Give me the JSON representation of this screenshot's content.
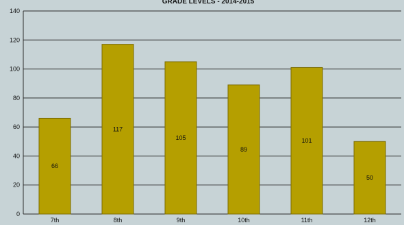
{
  "chart_data": {
    "type": "bar",
    "title": "GRADE LEVELS - 2014-2015",
    "xlabel": "",
    "ylabel": "",
    "categories": [
      "7th",
      "8th",
      "9th",
      "10th",
      "11th",
      "12th"
    ],
    "values": [
      66,
      117,
      105,
      89,
      101,
      50
    ],
    "ylim": [
      0,
      140
    ],
    "yticks": [
      0,
      20,
      40,
      60,
      80,
      100,
      120,
      140
    ],
    "grid": true,
    "legend": "none",
    "colors": {
      "bar_fill": "#b59f00",
      "bar_stroke": "#7a6b00",
      "plot_bg": "#c7d3d6",
      "grid": "#2b2b2b",
      "axis": "#2b2b2b"
    }
  }
}
